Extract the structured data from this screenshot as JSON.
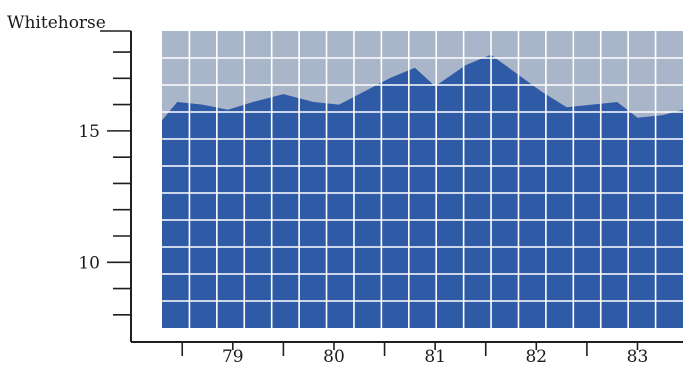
{
  "chart_data": {
    "type": "area",
    "title": "Whitehorse",
    "xlabel": "",
    "ylabel": "",
    "x_tick_labels": [
      "79",
      "80",
      "81",
      "82",
      "83"
    ],
    "y_tick_labels": [
      "10",
      "15"
    ],
    "xlim": [
      78.3,
      83.45
    ],
    "ylim": [
      7.5,
      18.8
    ],
    "grid": true,
    "colors": {
      "area": "#2f5aa6",
      "plot_background": "#a9b5c8",
      "grid": "#ffffff",
      "axis": "#1f1f1f"
    },
    "series": [
      {
        "x": [
          78.3,
          78.45,
          78.7,
          78.95,
          79.2,
          79.5,
          79.8,
          80.05,
          80.3,
          80.55,
          80.8,
          81.0,
          81.3,
          81.55,
          81.8,
          82.05,
          82.3,
          82.55,
          82.8,
          83.0,
          83.25,
          83.45
        ],
        "y": [
          15.4,
          16.1,
          16.0,
          15.8,
          16.1,
          16.4,
          16.1,
          16.0,
          16.5,
          17.0,
          17.4,
          16.7,
          17.5,
          17.9,
          17.2,
          16.5,
          15.9,
          16.0,
          16.1,
          15.5,
          15.6,
          15.8
        ]
      }
    ]
  }
}
